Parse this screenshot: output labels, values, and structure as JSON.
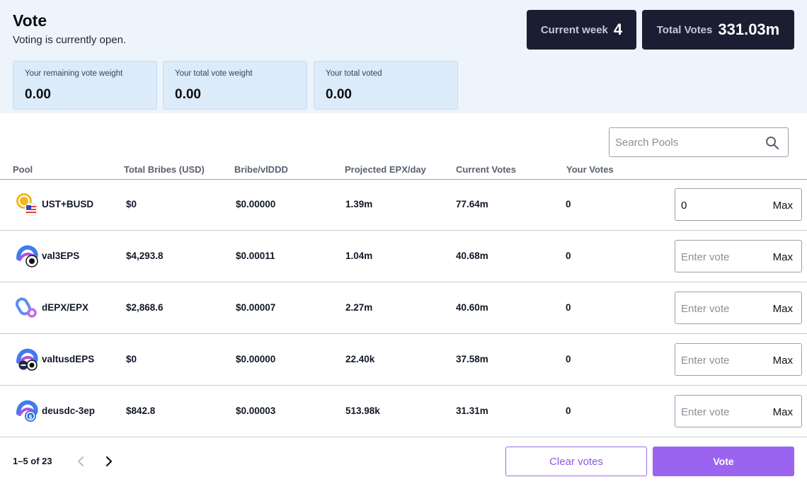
{
  "header": {
    "title": "Vote",
    "status": "Voting is currently open."
  },
  "stats": [
    {
      "label": "Your remaining vote weight",
      "value": "0.00"
    },
    {
      "label": "Your total vote weight",
      "value": "0.00"
    },
    {
      "label": "Your total voted",
      "value": "0.00"
    }
  ],
  "summary": {
    "week_label": "Current week",
    "week_value": "4",
    "total_label": "Total Votes",
    "total_value": "331.03m"
  },
  "search": {
    "placeholder": "Search Pools"
  },
  "table": {
    "columns": [
      "Pool",
      "Total Bribes (USD)",
      "Bribe/vlDDD",
      "Projected EPX/day",
      "Current Votes",
      "Your Votes"
    ],
    "vote_placeholder": "Enter vote",
    "max_label": "Max",
    "rows": [
      {
        "pool": "UST+BUSD",
        "bribes": "$0",
        "bribe_per": "$0.00000",
        "projected": "1.39m",
        "current": "77.64m",
        "yours": "0",
        "input_value": "0"
      },
      {
        "pool": "val3EPS",
        "bribes": "$4,293.8",
        "bribe_per": "$0.00011",
        "projected": "1.04m",
        "current": "40.68m",
        "yours": "0",
        "input_value": ""
      },
      {
        "pool": "dEPX/EPX",
        "bribes": "$2,868.6",
        "bribe_per": "$0.00007",
        "projected": "2.27m",
        "current": "40.60m",
        "yours": "0",
        "input_value": ""
      },
      {
        "pool": "valtusdEPS",
        "bribes": "$0",
        "bribe_per": "$0.00000",
        "projected": "22.40k",
        "current": "37.58m",
        "yours": "0",
        "input_value": ""
      },
      {
        "pool": "deusdc-3ep",
        "bribes": "$842.8",
        "bribe_per": "$0.00003",
        "projected": "513.98k",
        "current": "31.31m",
        "yours": "0",
        "input_value": ""
      }
    ]
  },
  "footer": {
    "page_info": "1–5 of 23",
    "clear_label": "Clear votes",
    "vote_label": "Vote"
  },
  "icons": {
    "search": "search-icon",
    "prev": "chevron-left-icon",
    "next": "chevron-right-icon",
    "pools": [
      "ust-busd-token-icon",
      "val3eps-token-icon",
      "depx-epx-token-icon",
      "valtusdeps-token-icon",
      "deusdc-3ep-token-icon"
    ]
  },
  "colors": {
    "accent": "#9b64f0",
    "dark_pill": "#1b1d32",
    "stat_card": "#dcebfa",
    "header_bg": "#eef4fb"
  }
}
